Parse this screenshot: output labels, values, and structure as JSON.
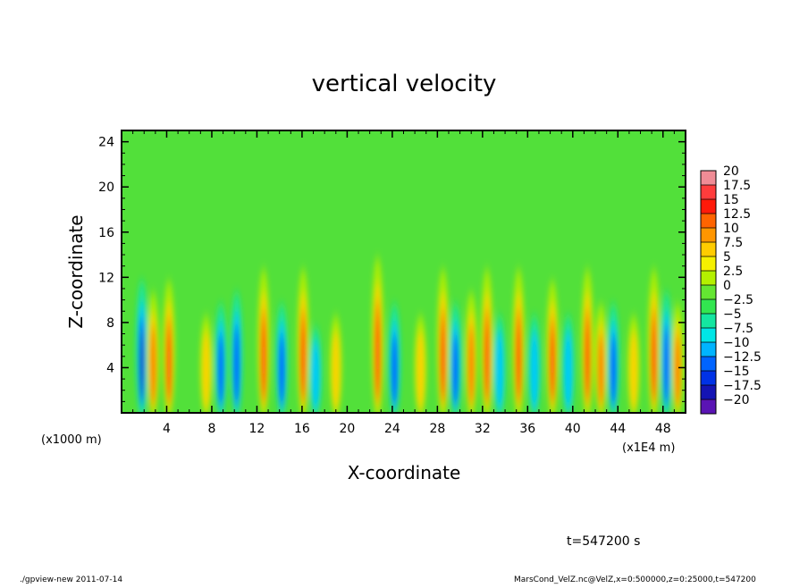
{
  "chart_data": {
    "type": "heatmap",
    "title": "vertical velocity",
    "xlabel": "X-coordinate",
    "ylabel": "Z-coordinate",
    "x_unit_left": "(x1000 m)",
    "x_unit_right": "(x1E4 m)",
    "xlim": [
      0,
      50
    ],
    "ylim": [
      0,
      25
    ],
    "x_ticks": [
      "4",
      "8",
      "12",
      "16",
      "20",
      "24",
      "28",
      "32",
      "36",
      "40",
      "44",
      "48"
    ],
    "y_ticks": [
      "4",
      "8",
      "12",
      "16",
      "20",
      "24"
    ],
    "colorbar_labels": [
      "20",
      "17.5",
      "15",
      "12.5",
      "10",
      "7.5",
      "5",
      "2.5",
      "0",
      "−2.5",
      "−5",
      "−7.5",
      "−10",
      "−12.5",
      "−15",
      "−17.5",
      "−20"
    ],
    "colorbar_colors": [
      "#f08c96",
      "#ff3c3c",
      "#ff1a0a",
      "#ff6400",
      "#ff9600",
      "#ffcc00",
      "#f5f000",
      "#b4f000",
      "#64e632",
      "#32e650",
      "#14e6a0",
      "#00e6e6",
      "#00b4ff",
      "#0064ff",
      "#0032e6",
      "#1414b4",
      "#5a14b4"
    ],
    "features": [
      {
        "x": 1.8,
        "amp": -0.8
      },
      {
        "x": 2.8,
        "amp": 0.7
      },
      {
        "x": 4.2,
        "amp": 0.8
      },
      {
        "x": 7.5,
        "amp": 0.5
      },
      {
        "x": 8.8,
        "amp": -0.6
      },
      {
        "x": 10.2,
        "amp": -0.7
      },
      {
        "x": 12.6,
        "amp": 0.9
      },
      {
        "x": 14.2,
        "amp": -0.6
      },
      {
        "x": 16.1,
        "amp": 0.9
      },
      {
        "x": 17.2,
        "amp": -0.4
      },
      {
        "x": 19.0,
        "amp": 0.5
      },
      {
        "x": 22.7,
        "amp": 1.0
      },
      {
        "x": 24.2,
        "amp": -0.6
      },
      {
        "x": 26.5,
        "amp": 0.5
      },
      {
        "x": 28.5,
        "amp": 0.9
      },
      {
        "x": 29.6,
        "amp": -0.6
      },
      {
        "x": 31.0,
        "amp": 0.7
      },
      {
        "x": 32.4,
        "amp": 0.9
      },
      {
        "x": 33.5,
        "amp": -0.5
      },
      {
        "x": 35.2,
        "amp": 0.9
      },
      {
        "x": 36.6,
        "amp": -0.5
      },
      {
        "x": 38.2,
        "amp": 0.8
      },
      {
        "x": 39.6,
        "amp": -0.5
      },
      {
        "x": 41.3,
        "amp": 0.9
      },
      {
        "x": 42.5,
        "amp": 0.6
      },
      {
        "x": 43.6,
        "amp": -0.6
      },
      {
        "x": 45.4,
        "amp": 0.5
      },
      {
        "x": 47.2,
        "amp": 0.9
      },
      {
        "x": 48.3,
        "amp": -0.7
      },
      {
        "x": 49.3,
        "amp": 0.6
      }
    ]
  },
  "footer": {
    "time_label": "t=547200 s",
    "left_note": "./gpview-new   2011-07-14",
    "right_note": "MarsCond_VelZ.nc@VelZ,x=0:500000,z=0:25000,t=547200"
  }
}
